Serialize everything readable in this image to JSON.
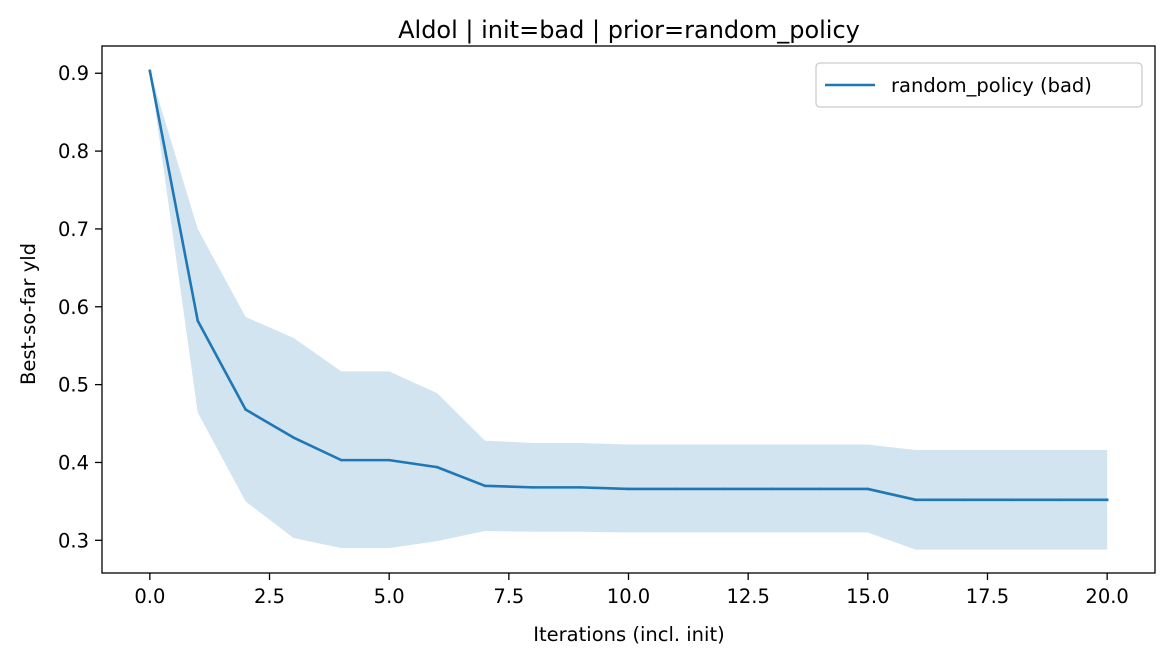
{
  "chart_data": {
    "type": "line",
    "title": "Aldol | init=bad | prior=random_policy",
    "xlabel": "Iterations (incl. init)",
    "ylabel": "Best-so-far yld",
    "xlim": [
      -1.0,
      21.0
    ],
    "ylim": [
      0.258,
      0.935
    ],
    "xticks": [
      0.0,
      2.5,
      5.0,
      7.5,
      10.0,
      12.5,
      15.0,
      17.5,
      20.0
    ],
    "xtick_labels": [
      "0.0",
      "2.5",
      "5.0",
      "7.5",
      "10.0",
      "12.5",
      "15.0",
      "17.5",
      "20.0"
    ],
    "yticks": [
      0.3,
      0.4,
      0.5,
      0.6,
      0.7,
      0.8,
      0.9
    ],
    "ytick_labels": [
      "0.3",
      "0.4",
      "0.5",
      "0.6",
      "0.7",
      "0.8",
      "0.9"
    ],
    "grid": false,
    "legend_position": "top-right",
    "x": [
      0,
      1,
      2,
      3,
      4,
      5,
      6,
      7,
      8,
      9,
      10,
      11,
      12,
      13,
      14,
      15,
      16,
      17,
      18,
      19,
      20
    ],
    "series": [
      {
        "name": "random_policy (bad)",
        "color": "#1f77b4",
        "values": [
          0.903,
          0.582,
          0.468,
          0.432,
          0.403,
          0.403,
          0.394,
          0.37,
          0.368,
          0.368,
          0.366,
          0.366,
          0.366,
          0.366,
          0.366,
          0.366,
          0.352,
          0.352,
          0.352,
          0.352,
          0.352
        ],
        "band_upper": [
          0.903,
          0.7,
          0.587,
          0.56,
          0.517,
          0.517,
          0.489,
          0.428,
          0.425,
          0.425,
          0.423,
          0.423,
          0.423,
          0.423,
          0.423,
          0.423,
          0.416,
          0.416,
          0.416,
          0.416,
          0.416
        ],
        "band_lower": [
          0.903,
          0.464,
          0.35,
          0.303,
          0.29,
          0.29,
          0.299,
          0.312,
          0.311,
          0.311,
          0.31,
          0.31,
          0.31,
          0.31,
          0.31,
          0.31,
          0.288,
          0.288,
          0.288,
          0.288,
          0.288
        ],
        "band_color": "#1f77b4",
        "band_opacity": 0.2
      }
    ]
  }
}
